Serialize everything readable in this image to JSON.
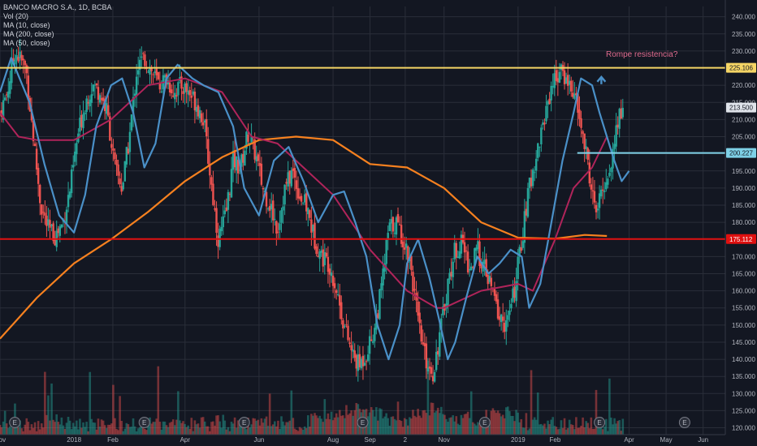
{
  "header": {
    "symbol_line": "BANCO MACRO S.A., 1D, BCBA",
    "indicators": [
      "Vol (20)",
      "MA (10, close)",
      "MA (200, close)",
      "MA (50, close)"
    ]
  },
  "annotation": "Rompe resistencia?",
  "earnings_marker": "E",
  "colors": {
    "background": "#131722",
    "grid": "#2a2e39",
    "up": "#26a69a",
    "down": "#ef5350",
    "ma10": "#4a90c8",
    "ma50": "#b0245a",
    "ma200": "#f7811f",
    "resistance": "#f5d565",
    "support": "#e01010",
    "target": "#7ed0e6",
    "price_tag": "#dfe3ea"
  },
  "chart_data": {
    "type": "candlestick",
    "title": "BANCO MACRO S.A., 1D, BCBA",
    "y_axis": {
      "ticks": [
        120,
        125,
        130,
        135,
        140,
        145,
        150,
        155,
        160,
        165,
        170,
        175,
        180,
        185,
        190,
        195,
        200,
        205,
        210,
        215,
        220,
        225,
        230,
        235,
        240
      ],
      "tick_labels": [
        "120.000",
        "125.000",
        "130.000",
        "135.000",
        "140.000",
        "145.000",
        "150.000",
        "155.000",
        "160.000",
        "165.000",
        "170.000",
        "175.000",
        "180.000",
        "185.000",
        "190.000",
        "195.000",
        "200.000",
        "205.000",
        "210.000",
        "215.000",
        "220.000",
        "225.000",
        "230.000",
        "235.000",
        "240.000"
      ],
      "range": [
        118,
        243
      ]
    },
    "x_axis": {
      "labels": [
        "Nov",
        "2018",
        "Feb",
        "Apr",
        "Jun",
        "Aug",
        "Sep",
        "2",
        "Nov",
        "2019",
        "Feb",
        "Apr",
        "May",
        "Jun"
      ],
      "months": [
        0,
        2,
        3.05,
        5,
        7,
        9,
        10,
        10.95,
        12,
        14,
        15,
        17,
        18,
        19
      ],
      "range": [
        0,
        19.6
      ]
    },
    "price_tags": [
      {
        "label": "225.106",
        "value": 225.106,
        "kind": "resistance"
      },
      {
        "label": "213.500",
        "value": 213.5,
        "kind": "last"
      },
      {
        "label": "200.227",
        "value": 200.227,
        "kind": "target"
      },
      {
        "label": "175.112",
        "value": 175.112,
        "kind": "support"
      }
    ],
    "horizontal_lines": [
      {
        "name": "Resistance",
        "value": 225.106
      },
      {
        "name": "Support",
        "value": 175.112
      }
    ],
    "segment_line": {
      "value": 200.227,
      "from_month": 15.6,
      "to_month": 19.6
    },
    "arrow": {
      "month": 16.25,
      "value": 221.5
    },
    "earnings_months": [
      0.4,
      3.9,
      6.6,
      9.8,
      13.1,
      16.2,
      18.5
    ],
    "ma200": [
      [
        0,
        146
      ],
      [
        1,
        158
      ],
      [
        2,
        168
      ],
      [
        3,
        175
      ],
      [
        4,
        183
      ],
      [
        5,
        192
      ],
      [
        6,
        199
      ],
      [
        7,
        204
      ],
      [
        8,
        205
      ],
      [
        9,
        204
      ],
      [
        10,
        197
      ],
      [
        11,
        196
      ],
      [
        12,
        190
      ],
      [
        13,
        180
      ],
      [
        14,
        175.5
      ],
      [
        15,
        175.2
      ],
      [
        15.8,
        176.3
      ],
      [
        16.4,
        176
      ]
    ],
    "ma50": [
      [
        0,
        212
      ],
      [
        0.5,
        205
      ],
      [
        1,
        204
      ],
      [
        2,
        204
      ],
      [
        3,
        210
      ],
      [
        4,
        220
      ],
      [
        5,
        222
      ],
      [
        6,
        218
      ],
      [
        6.8,
        205
      ],
      [
        7.5,
        203
      ],
      [
        8,
        198
      ],
      [
        9,
        188
      ],
      [
        10,
        172
      ],
      [
        11,
        160
      ],
      [
        11.8,
        155
      ],
      [
        12,
        155
      ],
      [
        13,
        160
      ],
      [
        14,
        162
      ],
      [
        14.4,
        160
      ],
      [
        15,
        175
      ],
      [
        15.5,
        190
      ],
      [
        16,
        196
      ],
      [
        16.4,
        205
      ]
    ],
    "ma10": [
      [
        0,
        218
      ],
      [
        0.3,
        228
      ],
      [
        0.8,
        215
      ],
      [
        1.2,
        197
      ],
      [
        1.6,
        182
      ],
      [
        2,
        177
      ],
      [
        2.3,
        188
      ],
      [
        2.6,
        208
      ],
      [
        3,
        220
      ],
      [
        3.3,
        222
      ],
      [
        3.6,
        212
      ],
      [
        3.9,
        196
      ],
      [
        4.2,
        203
      ],
      [
        4.5,
        222
      ],
      [
        4.8,
        226
      ],
      [
        5.2,
        222
      ],
      [
        5.5,
        220
      ],
      [
        5.9,
        218
      ],
      [
        6.3,
        208
      ],
      [
        6.6,
        190
      ],
      [
        7,
        182
      ],
      [
        7.4,
        198
      ],
      [
        7.8,
        202
      ],
      [
        8.2,
        192
      ],
      [
        8.6,
        180
      ],
      [
        9,
        188
      ],
      [
        9.3,
        189
      ],
      [
        9.6,
        180
      ],
      [
        9.9,
        170
      ],
      [
        10.2,
        150
      ],
      [
        10.5,
        140
      ],
      [
        10.8,
        150
      ],
      [
        11,
        168
      ],
      [
        11.3,
        175
      ],
      [
        11.6,
        164
      ],
      [
        11.9,
        150
      ],
      [
        12.1,
        140
      ],
      [
        12.3,
        145
      ],
      [
        12.6,
        158
      ],
      [
        12.9,
        170
      ],
      [
        13.2,
        165
      ],
      [
        13.5,
        168
      ],
      [
        13.8,
        172
      ],
      [
        14.1,
        170
      ],
      [
        14.3,
        155
      ],
      [
        14.6,
        162
      ],
      [
        14.9,
        180
      ],
      [
        15.2,
        198
      ],
      [
        15.5,
        212
      ],
      [
        15.7,
        222
      ],
      [
        16,
        220
      ],
      [
        16.2,
        212
      ],
      [
        16.4,
        205
      ],
      [
        16.6,
        198
      ],
      [
        16.8,
        192
      ],
      [
        17,
        195
      ]
    ],
    "candle_anchors": [
      [
        0,
        212
      ],
      [
        0.2,
        218
      ],
      [
        0.4,
        230
      ],
      [
        0.7,
        225
      ],
      [
        0.9,
        205
      ],
      [
        1.1,
        185
      ],
      [
        1.3,
        178
      ],
      [
        1.5,
        176
      ],
      [
        1.7,
        180
      ],
      [
        1.9,
        190
      ],
      [
        2.1,
        205
      ],
      [
        2.3,
        215
      ],
      [
        2.5,
        220
      ],
      [
        2.7,
        218
      ],
      [
        2.9,
        212
      ],
      [
        3.1,
        196
      ],
      [
        3.3,
        190
      ],
      [
        3.5,
        205
      ],
      [
        3.7,
        225
      ],
      [
        3.9,
        228
      ],
      [
        4.1,
        224
      ],
      [
        4.3,
        220
      ],
      [
        4.5,
        222
      ],
      [
        4.7,
        218
      ],
      [
        4.9,
        220
      ],
      [
        5.1,
        218
      ],
      [
        5.3,
        215
      ],
      [
        5.5,
        210
      ],
      [
        5.7,
        192
      ],
      [
        5.9,
        175
      ],
      [
        6.1,
        182
      ],
      [
        6.3,
        198
      ],
      [
        6.5,
        196
      ],
      [
        6.7,
        206
      ],
      [
        6.9,
        200
      ],
      [
        7.1,
        190
      ],
      [
        7.3,
        185
      ],
      [
        7.5,
        178
      ],
      [
        7.7,
        190
      ],
      [
        7.9,
        195
      ],
      [
        8.1,
        188
      ],
      [
        8.3,
        184
      ],
      [
        8.5,
        175
      ],
      [
        8.7,
        170
      ],
      [
        8.9,
        168
      ],
      [
        9.1,
        160
      ],
      [
        9.3,
        150
      ],
      [
        9.5,
        142
      ],
      [
        9.7,
        138
      ],
      [
        9.9,
        142
      ],
      [
        10.1,
        148
      ],
      [
        10.3,
        160
      ],
      [
        10.5,
        178
      ],
      [
        10.7,
        180
      ],
      [
        10.9,
        175
      ],
      [
        11.1,
        168
      ],
      [
        11.3,
        150
      ],
      [
        11.5,
        140
      ],
      [
        11.7,
        136
      ],
      [
        11.9,
        148
      ],
      [
        12.1,
        162
      ],
      [
        12.3,
        172
      ],
      [
        12.5,
        174
      ],
      [
        12.7,
        166
      ],
      [
        12.9,
        172
      ],
      [
        13.1,
        166
      ],
      [
        13.3,
        160
      ],
      [
        13.5,
        152
      ],
      [
        13.7,
        150
      ],
      [
        13.9,
        160
      ],
      [
        14.1,
        175
      ],
      [
        14.3,
        190
      ],
      [
        14.5,
        200
      ],
      [
        14.7,
        210
      ],
      [
        14.9,
        220
      ],
      [
        15.1,
        224
      ],
      [
        15.3,
        222
      ],
      [
        15.5,
        218
      ],
      [
        15.7,
        208
      ],
      [
        15.9,
        196
      ],
      [
        16.1,
        182
      ],
      [
        16.3,
        190
      ],
      [
        16.5,
        196
      ],
      [
        16.7,
        210
      ],
      [
        16.85,
        213.5
      ]
    ],
    "volume": {
      "baseline_value": 0,
      "note": "Volume bars (Vol 20) along the bottom of the price pane"
    },
    "grid": true,
    "legend": "top-left"
  }
}
